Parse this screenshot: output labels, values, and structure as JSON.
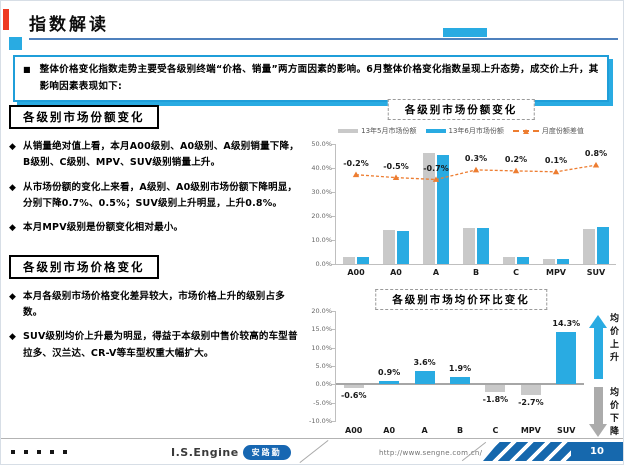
{
  "page": {
    "title": "指数解读",
    "page_number": "10",
    "footer": {
      "brand": "I.S.Engine",
      "brand_badge": "安路勤",
      "url": "http://www.sengne.com.cn/"
    }
  },
  "ui": {
    "summary_marker": "■",
    "bullet_marker": "◆"
  },
  "summary": {
    "text": "整体价格变化指数走势主要受各级别终端“价格、销量”两方面因素的影响。6月整体价格变化指数呈现上升态势，成交价上升，其影响因素表现如下:"
  },
  "sections": [
    {
      "title": "各级别市场份额变化",
      "bullets": [
        "从销量绝对值上看，本月A00级别、A0级别、A级别销量下降，B级别、C级别、MPV、SUV级别销量上升。",
        "从市场份额的变化上来看，A级别、A0级别市场份额下降明显，分别下降0.7%、0.5%；SUV级别上升明显，上升0.8%。",
        "本月MPV级别是份额变化相对最小。"
      ]
    },
    {
      "title": "各级别市场价格变化",
      "bullets": [
        "本月各级别市场价格变化差异较大，市场价格上升的级别占多数。",
        "SUV级别均价上升最为明显，得益于本级别中售价较高的车型普拉多、汉兰达、CR-V等车型权重大幅扩大。"
      ]
    }
  ],
  "colors": {
    "bar_blue": "#29abe2",
    "bar_gray": "#c9c9c9",
    "line_orange": "#ed7d31",
    "accent_blue": "#29abe2",
    "footer_blue": "#1668ad",
    "title_red": "#ee3a21"
  },
  "chart_data": [
    {
      "type": "bar",
      "title": "各级别市场份额变化",
      "categories": [
        "A00",
        "A0",
        "A",
        "B",
        "C",
        "MPV",
        "SUV"
      ],
      "series": [
        {
          "name": "13年5月市场份额",
          "kind": "bar",
          "color": "#c9c9c9",
          "values": [
            3.1,
            14.3,
            46.2,
            14.8,
            2.9,
            2.1,
            14.6
          ]
        },
        {
          "name": "13年6月市场份额",
          "kind": "bar",
          "color": "#29abe2",
          "values": [
            2.9,
            13.8,
            45.5,
            15.1,
            3.1,
            2.2,
            15.4
          ]
        },
        {
          "name": "月度份额差值",
          "kind": "line",
          "color": "#ed7d31",
          "values": [
            -0.2,
            -0.5,
            -0.7,
            0.3,
            0.2,
            0.1,
            0.8
          ],
          "labels": [
            "-0.2%",
            "-0.5%",
            "-0.7%",
            "0.3%",
            "0.2%",
            "0.1%",
            "0.8%"
          ]
        }
      ],
      "ylabel": "",
      "ylim": [
        0,
        50
      ],
      "y_ticks": [
        {
          "v": 0,
          "label": "0.0%"
        },
        {
          "v": 10,
          "label": "10.0%"
        },
        {
          "v": 20,
          "label": "20.0%"
        },
        {
          "v": 30,
          "label": "30.0%"
        },
        {
          "v": 40,
          "label": "40.0%"
        },
        {
          "v": 50,
          "label": "50.0%"
        }
      ],
      "legend_position": "top",
      "grid": false
    },
    {
      "type": "bar",
      "title": "各级别市场均价环比变化",
      "categories": [
        "A00",
        "A0",
        "A",
        "B",
        "C",
        "MPV",
        "SUV"
      ],
      "values": [
        -0.6,
        0.9,
        3.6,
        1.9,
        -1.8,
        -2.7,
        14.3
      ],
      "labels": [
        "-0.6%",
        "0.9%",
        "3.6%",
        "1.9%",
        "-1.8%",
        "-2.7%",
        "14.3%"
      ],
      "ylim": [
        -10,
        20
      ],
      "y_ticks": [
        {
          "v": 20,
          "label": "20.0%"
        },
        {
          "v": 15,
          "label": "15.0%"
        },
        {
          "v": 10,
          "label": "10.0%"
        },
        {
          "v": 5,
          "label": "5.0%"
        },
        {
          "v": 0,
          "label": "0.0%"
        },
        {
          "v": -5,
          "label": "-5.0%"
        },
        {
          "v": -10,
          "label": "-10.0%"
        }
      ],
      "annotations": {
        "up": "均价上升",
        "down": "均价下降"
      },
      "grid": false
    }
  ]
}
